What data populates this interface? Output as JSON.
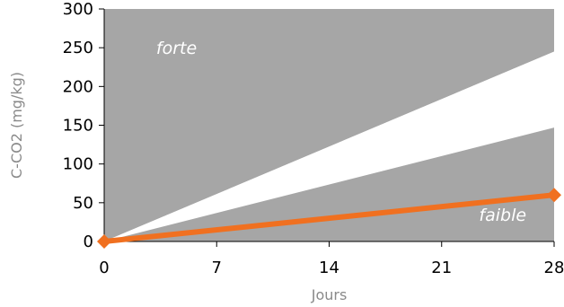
{
  "chart_data": {
    "type": "line",
    "title": "",
    "xlabel": "Jours",
    "ylabel": "C-CO2 (mg/kg)",
    "xlim": [
      0,
      28
    ],
    "ylim": [
      0,
      300
    ],
    "x_ticks": [
      0,
      7,
      14,
      21,
      28
    ],
    "y_ticks": [
      0,
      50,
      100,
      150,
      200,
      250,
      300
    ],
    "grid": false,
    "bands": [
      {
        "label": "forte",
        "color": "#a6a6a6",
        "lower": [
          [
            0,
            0
          ],
          [
            28,
            245
          ]
        ],
        "upper": [
          [
            0,
            300
          ],
          [
            28,
            300
          ]
        ]
      },
      {
        "label": "",
        "color": "#ffffff",
        "lower": [
          [
            0,
            0
          ],
          [
            28,
            147
          ]
        ],
        "upper": [
          [
            0,
            0
          ],
          [
            28,
            245
          ]
        ]
      },
      {
        "label": "faible",
        "color": "#a6a6a6",
        "lower": [
          [
            0,
            0
          ],
          [
            28,
            0
          ]
        ],
        "upper": [
          [
            0,
            0
          ],
          [
            28,
            147
          ]
        ]
      }
    ],
    "series": [
      {
        "x": [
          0,
          28
        ],
        "values": [
          0,
          60
        ],
        "color": "#f07020"
      }
    ],
    "annotations": [
      {
        "text": "forte",
        "x": 4.5,
        "y": 250
      },
      {
        "text": "faible",
        "x": 24.8,
        "y": 35
      }
    ]
  }
}
